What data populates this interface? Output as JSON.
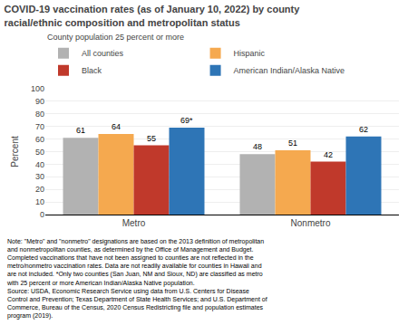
{
  "chart_data": {
    "type": "bar",
    "title": "COVID-19 vaccination rates (as of January 10, 2022) by county\nracial/ethnic composition and metropolitan status",
    "legend_title": "County population 25 percent or more",
    "ylabel": "Percent",
    "categories": [
      "Metro",
      "Nonmetro"
    ],
    "series": [
      {
        "name": "All counties",
        "color": "#b2b2b2",
        "values": [
          61,
          48
        ],
        "value_labels": [
          "61",
          "48"
        ]
      },
      {
        "name": "Hispanic",
        "color": "#f5a94f",
        "values": [
          64,
          51
        ],
        "value_labels": [
          "64",
          "51"
        ]
      },
      {
        "name": "Black",
        "color": "#c0392b",
        "values": [
          55,
          42
        ],
        "value_labels": [
          "55",
          "42"
        ]
      },
      {
        "name": "American Indian/Alaska Native",
        "color": "#2e75b6",
        "values": [
          69,
          62
        ],
        "value_labels": [
          "69*",
          "62"
        ]
      }
    ],
    "ylim": [
      0,
      100
    ],
    "yticks": [
      0,
      10,
      20,
      30,
      40,
      50,
      60,
      70,
      80,
      90,
      100
    ],
    "grid": true,
    "data_labels": true,
    "note": "Note: \"Metro\" and \"nonmetro\" designations are based on the 2013 definition of metropolitan\nand nonmetropolitan counties, as determined by the Office of Management and Budget.\nCompleted vaccinations that have not been assigned to counties are not reflected in the\nmetro/nonmetro vaccination rates. Data are not readily available for counties in Hawaii and\nare not included. *Only two counties (San Juan, NM and Sioux, ND) are classified as metro\nwith 25 percent or more American Indian/Alaska Native population.\nSource: USDA, Economic Research Service using data from U.S. Centers for Disease\nControl and Prevention; Texas Department of State Health Services; and U.S. Department of\nCommerce, Bureau of the Census, 2020 Census Redistricting file and population estimates\nprogram (2019)."
  }
}
